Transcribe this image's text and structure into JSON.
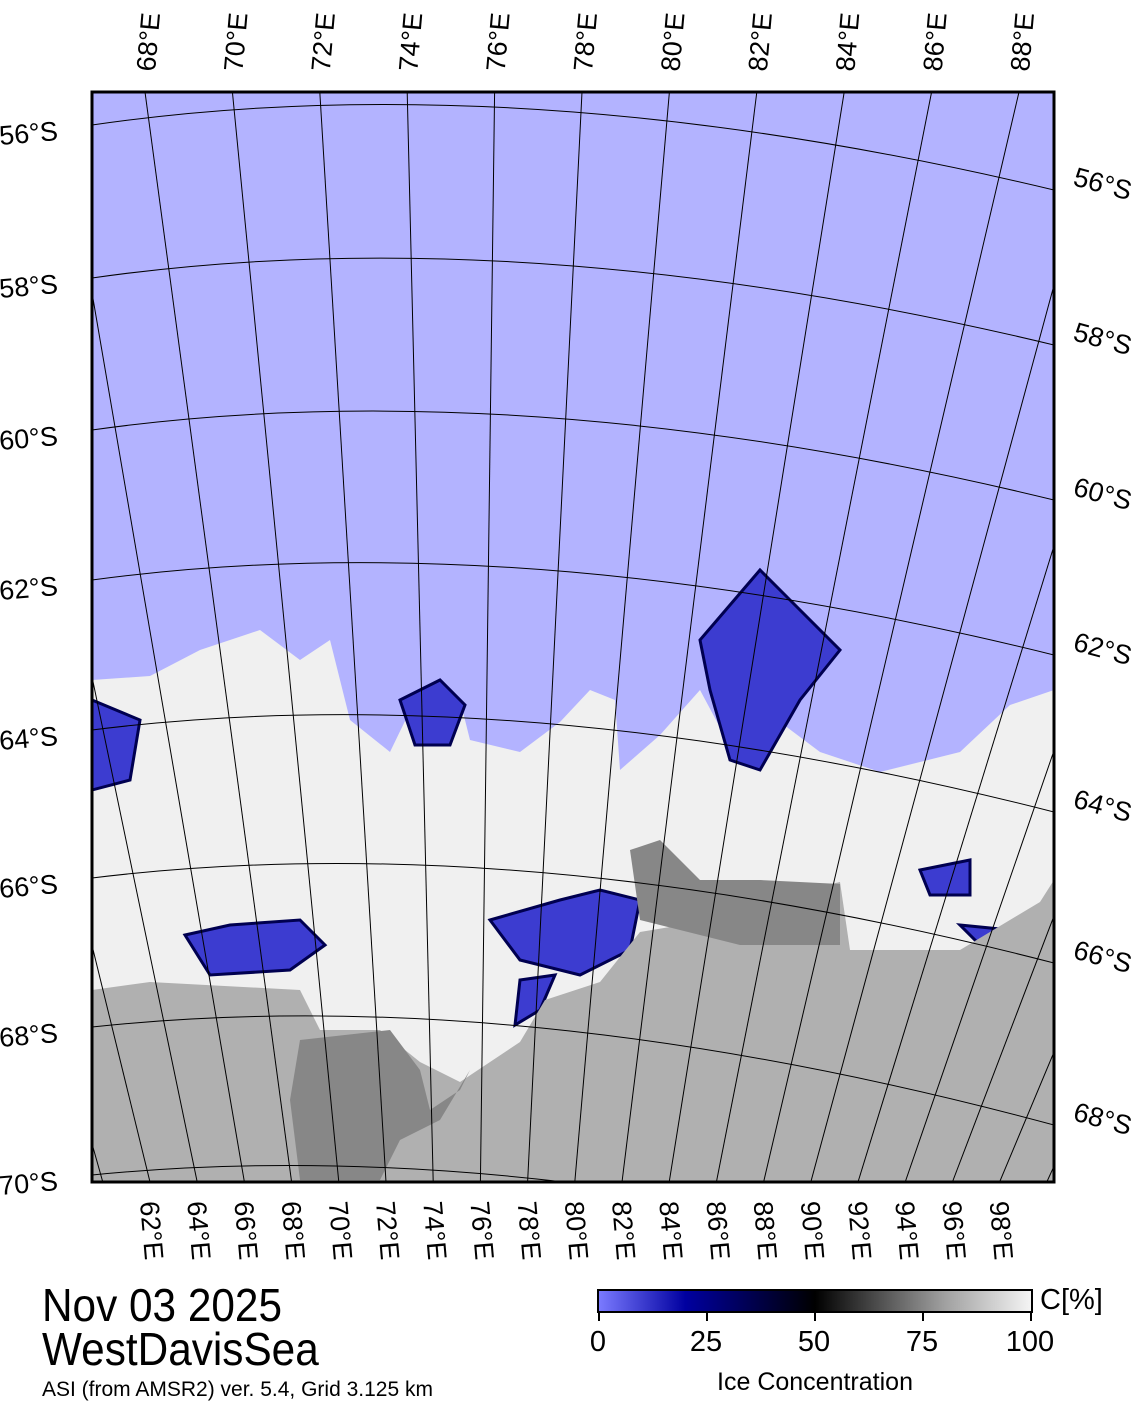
{
  "map": {
    "projection_frame": "polar stereographic",
    "colors": {
      "ocean": "#b3b3ff",
      "ice": "#f0f0f0",
      "land": "#b0b0b0",
      "land_dark": "#878787",
      "ice_low": "#3c3cd0"
    },
    "top_lon_labels": [
      "68°E",
      "70°E",
      "72°E",
      "74°E",
      "76°E",
      "78°E",
      "80°E",
      "82°E",
      "84°E",
      "86°E",
      "88°E"
    ],
    "bottom_lon_labels": [
      "62°E",
      "64°E",
      "66°E",
      "68°E",
      "70°E",
      "72°E",
      "74°E",
      "76°E",
      "78°E",
      "80°E",
      "82°E",
      "84°E",
      "86°E",
      "88°E",
      "90°E",
      "92°E",
      "94°E",
      "96°E",
      "98°E"
    ],
    "left_lat_labels": [
      "56°S",
      "58°S",
      "60°S",
      "62°S",
      "64°S",
      "66°S",
      "68°S",
      "70°S"
    ],
    "right_lat_labels": [
      "56°S",
      "58°S",
      "60°S",
      "62°S",
      "64°S",
      "66°S",
      "68°S"
    ]
  },
  "header": {
    "date": "Nov 03 2025",
    "region": "WestDavisSea"
  },
  "source": "ASI (from AMSR2) ver. 5.4,  Grid 3.125 km",
  "colorbar": {
    "unit": "C[%]",
    "ticks": [
      "0",
      "25",
      "50",
      "75",
      "100"
    ],
    "label": "Ice Concentration",
    "range": [
      0,
      100
    ]
  }
}
